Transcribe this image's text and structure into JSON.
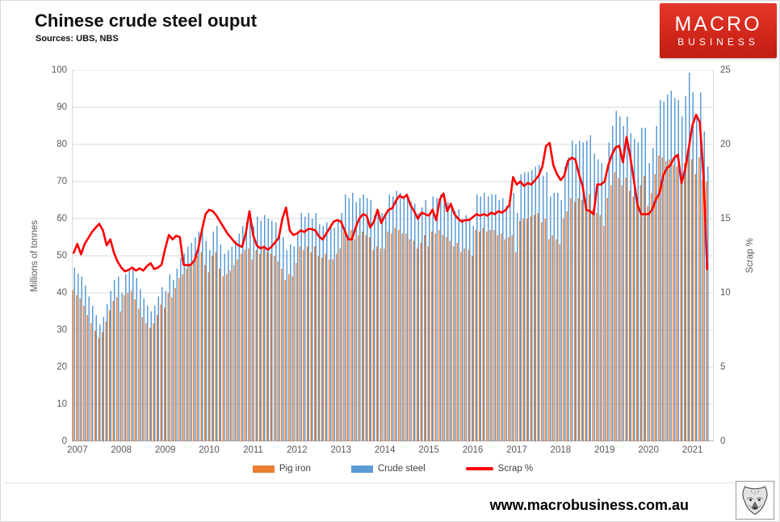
{
  "header": {
    "title": "Chinese crude steel ouput",
    "subtitle": "Sources: UBS, NBS"
  },
  "logo": {
    "line1": "MACRO",
    "line2": "BUSINESS",
    "bg_color": "#d2271b"
  },
  "footer": {
    "url": "www.macrobusiness.com.au",
    "icon": "wolf-head-icon"
  },
  "colors": {
    "pig_iron": "#ED7D31",
    "crude_steel": "#5B9BD5",
    "scrap_line": "#FF0000",
    "gridline": "#d9d9d9",
    "axis": "#b3b3b3",
    "tick_text": "#595959"
  },
  "chart_data": {
    "type": "bar",
    "title": "Chinese crude steel ouput",
    "x_unit": "month",
    "start_month": "2007-01",
    "end_month": "2021-06",
    "years": [
      "2007",
      "2008",
      "2009",
      "2010",
      "2011",
      "2012",
      "2013",
      "2014",
      "2015",
      "2016",
      "2017",
      "2018",
      "2019",
      "2020",
      "2021"
    ],
    "left_axis": {
      "label": "Millions of tonnes",
      "min": 0,
      "max": 100,
      "step": 10
    },
    "right_axis": {
      "label": "Scrap %",
      "min": 0,
      "max": 25,
      "step": 5
    },
    "grid": true,
    "legend_position": "bottom",
    "legend": [
      {
        "label": "Pig iron",
        "color": "#ED7D31",
        "kind": "bar"
      },
      {
        "label": "Crude steel",
        "color": "#5B9BD5",
        "kind": "bar"
      },
      {
        "label": "Scrap %",
        "color": "#FF0000",
        "kind": "line"
      }
    ],
    "series": [
      {
        "name": "Pig iron",
        "axis": "left",
        "type": "bar",
        "values": [
          40.8,
          39.3,
          38.6,
          36.5,
          34.0,
          31.8,
          29.8,
          27.8,
          29.5,
          32.3,
          35.3,
          37.8,
          38.8,
          35.0,
          39.3,
          40.0,
          40.5,
          38.3,
          35.8,
          33.5,
          31.8,
          30.5,
          31.8,
          34.0,
          36.8,
          36.0,
          40.0,
          38.8,
          41.3,
          44.0,
          45.0,
          46.5,
          47.5,
          48.5,
          50.0,
          51.0,
          47.5,
          45.5,
          50.0,
          51.0,
          46.5,
          44.5,
          45.0,
          46.0,
          47.5,
          49.0,
          50.5,
          51.5,
          52.0,
          49.0,
          51.5,
          50.5,
          52.0,
          51.0,
          50.5,
          50.0,
          48.5,
          46.5,
          43.5,
          45.0,
          44.5,
          48.0,
          52.5,
          51.5,
          52.5,
          51.0,
          52.5,
          50.0,
          49.5,
          50.5,
          49.0,
          49.0,
          50.5,
          52.0,
          56.5,
          55.5,
          57.0,
          54.5,
          55.5,
          56.5,
          55.5,
          55.0,
          51.5,
          52.5,
          52.0,
          52.0,
          56.5,
          56.0,
          57.5,
          57.0,
          56.0,
          56.0,
          54.5,
          54.0,
          52.0,
          53.5,
          55.5,
          52.5,
          56.5,
          56.0,
          57.0,
          55.5,
          55.0,
          54.0,
          52.5,
          53.5,
          51.0,
          52.0,
          51.5,
          50.0,
          57.0,
          56.5,
          57.5,
          56.5,
          57.0,
          57.0,
          55.5,
          56.0,
          54.5,
          55.0,
          55.5,
          51.0,
          59.5,
          60.0,
          60.0,
          60.5,
          61.0,
          61.5,
          59.0,
          60.0,
          54.5,
          55.5,
          54.5,
          53.0,
          60.0,
          62.0,
          65.5,
          64.5,
          65.5,
          65.0,
          65.5,
          66.5,
          62.5,
          61.5,
          61.0,
          58.0,
          65.5,
          69.0,
          72.5,
          71.0,
          69.0,
          71.0,
          67.5,
          66.0,
          65.5,
          69.0,
          71.5,
          63.5,
          67.0,
          72.0,
          77.0,
          76.5,
          75.5,
          76.0,
          74.5,
          74.0,
          70.5,
          75.0,
          78.5,
          76.0,
          72.0,
          76.5,
          70.5,
          70.0
        ]
      },
      {
        "name": "Crude steel",
        "axis": "left",
        "type": "bar",
        "values": [
          46.8,
          45.2,
          44.4,
          42.0,
          39.0,
          36.5,
          34.0,
          31.5,
          33.5,
          37.0,
          40.5,
          43.5,
          44.5,
          40.0,
          45.0,
          46.0,
          46.5,
          44.0,
          41.0,
          38.5,
          36.5,
          35.0,
          36.5,
          39.0,
          41.5,
          40.5,
          45.0,
          43.5,
          46.5,
          49.5,
          50.5,
          52.5,
          53.5,
          55.0,
          56.5,
          57.5,
          54.0,
          51.5,
          56.5,
          58.0,
          53.0,
          50.5,
          51.5,
          52.5,
          54.0,
          56.0,
          58.0,
          59.0,
          61.5,
          58.0,
          60.5,
          59.5,
          61.0,
          60.0,
          59.5,
          59.0,
          57.0,
          55.0,
          51.5,
          53.0,
          52.5,
          56.0,
          61.5,
          60.5,
          61.5,
          60.0,
          61.5,
          58.5,
          58.0,
          59.0,
          57.5,
          57.5,
          59.5,
          61.5,
          66.5,
          65.5,
          67.0,
          64.5,
          65.5,
          66.5,
          65.5,
          65.0,
          61.0,
          62.0,
          61.5,
          61.5,
          66.5,
          66.0,
          67.5,
          67.0,
          66.0,
          66.0,
          64.5,
          64.0,
          61.5,
          63.0,
          65.0,
          61.5,
          66.0,
          65.5,
          66.5,
          65.0,
          64.5,
          63.5,
          62.0,
          62.5,
          60.0,
          61.0,
          60.0,
          58.0,
          66.5,
          66.0,
          67.0,
          66.0,
          66.5,
          66.5,
          65.0,
          65.5,
          63.5,
          64.0,
          67.0,
          61.5,
          72.0,
          72.5,
          72.5,
          73.0,
          74.0,
          74.5,
          71.5,
          72.5,
          66.0,
          67.0,
          67.0,
          65.0,
          74.0,
          76.5,
          81.0,
          80.0,
          81.0,
          80.5,
          81.0,
          82.5,
          77.5,
          76.0,
          75.0,
          71.0,
          80.5,
          85.0,
          89.0,
          87.5,
          85.0,
          87.5,
          83.0,
          81.5,
          80.5,
          84.5,
          84.5,
          75.0,
          79.0,
          85.0,
          92.0,
          91.5,
          93.5,
          94.5,
          92.5,
          92.0,
          87.5,
          93.0,
          99.3,
          94.0,
          88.0,
          94.0,
          83.5,
          74.0
        ]
      },
      {
        "name": "Scrap %",
        "axis": "right",
        "type": "line",
        "values": [
          12.7,
          13.3,
          12.6,
          13.3,
          13.7,
          14.1,
          14.4,
          14.65,
          14.2,
          13.2,
          13.6,
          12.7,
          12.1,
          11.7,
          11.45,
          11.55,
          11.7,
          11.5,
          11.65,
          11.5,
          11.8,
          12.0,
          11.6,
          11.7,
          11.9,
          13.0,
          13.9,
          13.6,
          13.85,
          13.75,
          11.9,
          11.85,
          11.9,
          12.2,
          12.95,
          14.2,
          15.3,
          15.6,
          15.5,
          15.2,
          14.8,
          14.4,
          14.0,
          13.7,
          13.4,
          13.2,
          13.1,
          14.0,
          15.5,
          13.9,
          13.2,
          13.0,
          13.1,
          12.9,
          13.1,
          13.4,
          13.7,
          15.0,
          15.75,
          14.2,
          13.9,
          14.0,
          14.2,
          14.1,
          14.3,
          14.3,
          14.2,
          13.8,
          13.6,
          14.0,
          14.4,
          14.8,
          14.9,
          14.8,
          14.2,
          13.6,
          13.6,
          14.4,
          15.0,
          15.3,
          15.2,
          14.4,
          14.8,
          15.6,
          14.7,
          15.2,
          15.6,
          15.7,
          16.2,
          16.55,
          16.4,
          16.6,
          15.9,
          15.5,
          15.0,
          15.4,
          15.3,
          15.2,
          15.6,
          14.9,
          16.3,
          16.7,
          15.5,
          16.0,
          15.3,
          15.0,
          14.8,
          14.9,
          14.9,
          15.1,
          15.3,
          15.2,
          15.3,
          15.2,
          15.4,
          15.3,
          15.5,
          15.4,
          15.6,
          15.9,
          17.8,
          17.3,
          17.5,
          17.2,
          17.4,
          17.3,
          17.6,
          17.9,
          18.5,
          19.9,
          20.1,
          18.6,
          18.0,
          17.6,
          17.9,
          18.9,
          19.1,
          19.0,
          18.0,
          17.2,
          15.6,
          15.5,
          15.3,
          17.3,
          17.3,
          17.5,
          18.6,
          19.3,
          19.8,
          19.9,
          18.8,
          20.5,
          19.2,
          17.6,
          15.9,
          15.3,
          15.3,
          15.3,
          15.6,
          16.3,
          16.7,
          17.9,
          18.4,
          18.6,
          19.1,
          19.3,
          17.4,
          18.3,
          19.8,
          21.3,
          22.0,
          21.5,
          18.0,
          11.6
        ]
      }
    ]
  }
}
